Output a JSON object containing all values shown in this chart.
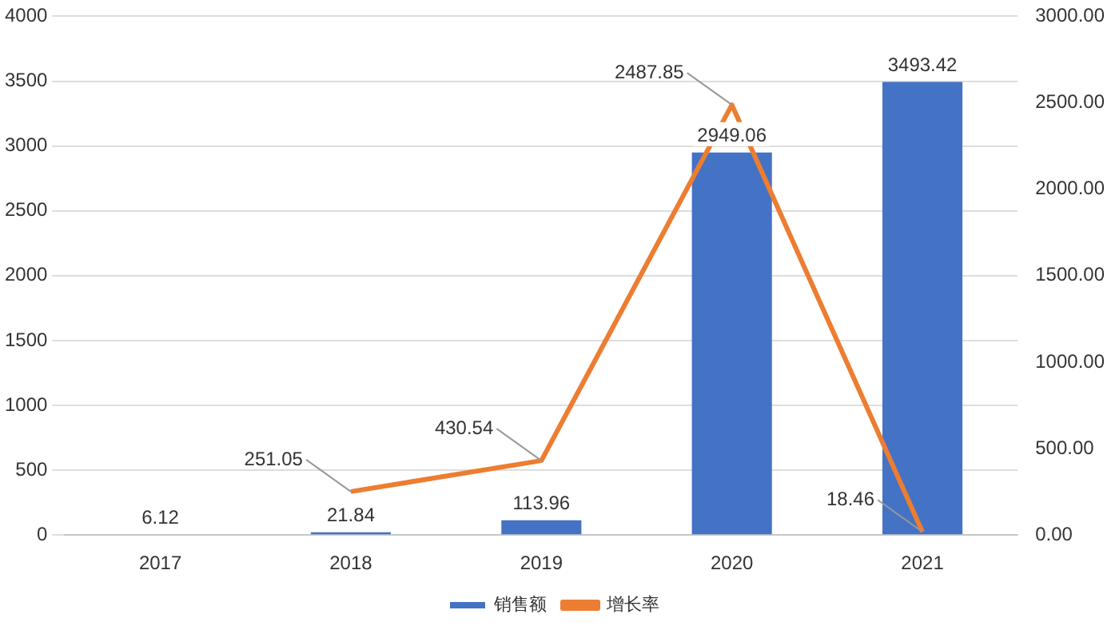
{
  "chart_data": {
    "type": "bar",
    "categories": [
      "2017",
      "2018",
      "2019",
      "2020",
      "2021"
    ],
    "series": [
      {
        "name": "销售额",
        "color": "#4472c4",
        "values": [
          6.12,
          21.84,
          113.96,
          2949.06,
          3493.42
        ]
      },
      {
        "name": "增长率",
        "type": "line",
        "axis": "y2",
        "color": "#ed7d31",
        "values": [
          null,
          251.05,
          430.54,
          2487.85,
          18.46
        ]
      }
    ],
    "ylim": [
      0,
      4000
    ],
    "yticks": [
      0,
      500,
      1000,
      1500,
      2000,
      2500,
      3000,
      3500,
      4000
    ],
    "y2lim": [
      0,
      3000
    ],
    "y2ticks": [
      {
        "value": 0,
        "label": "0.00"
      },
      {
        "value": 500,
        "label": "500.00"
      },
      {
        "value": 1000,
        "label": "1000.00"
      },
      {
        "value": 1500,
        "label": "1500.00"
      },
      {
        "value": 2000,
        "label": "2000.00"
      },
      {
        "value": 2500,
        "label": "2500.00"
      },
      {
        "value": 3000,
        "label": "3000.00"
      }
    ],
    "grid": "y",
    "legend": "bottom",
    "data_labels": true,
    "marker": "none"
  }
}
